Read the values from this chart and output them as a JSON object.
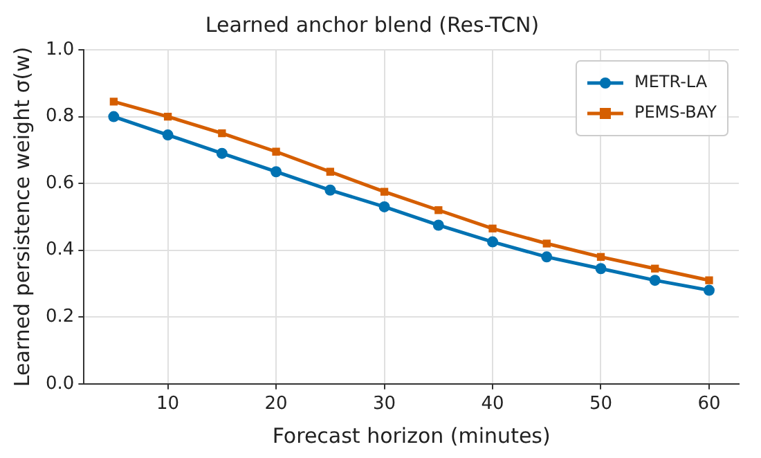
{
  "chart_data": {
    "type": "line",
    "title": "Learned anchor blend (Res-TCN)",
    "xlabel": "Forecast horizon (minutes)",
    "ylabel": "Learned persistence weight σ(w)",
    "x": [
      5,
      10,
      15,
      20,
      25,
      30,
      35,
      40,
      45,
      50,
      55,
      60
    ],
    "series": [
      {
        "name": "METR-LA",
        "color": "#0072b2",
        "marker": "circle",
        "values": [
          0.8,
          0.745,
          0.69,
          0.635,
          0.58,
          0.53,
          0.475,
          0.425,
          0.38,
          0.345,
          0.31,
          0.28
        ]
      },
      {
        "name": "PEMS-BAY",
        "color": "#d55e00",
        "marker": "square",
        "values": [
          0.845,
          0.8,
          0.75,
          0.695,
          0.635,
          0.575,
          0.52,
          0.465,
          0.42,
          0.38,
          0.345,
          0.31
        ]
      }
    ],
    "xlim": [
      2.25,
      62.75
    ],
    "xticks": [
      10,
      20,
      30,
      40,
      50,
      60
    ],
    "ylim": [
      0,
      1
    ],
    "yticks": [
      {
        "value": 0,
        "label": "0.0"
      },
      {
        "value": 0.2,
        "label": "0.2"
      },
      {
        "value": 0.4,
        "label": "0.4"
      },
      {
        "value": 0.6,
        "label": "0.6"
      },
      {
        "value": 0.8,
        "label": "0.8"
      },
      {
        "value": 1,
        "label": "1.0"
      }
    ],
    "grid": true,
    "legend": "top right",
    "line_style": "solid"
  }
}
